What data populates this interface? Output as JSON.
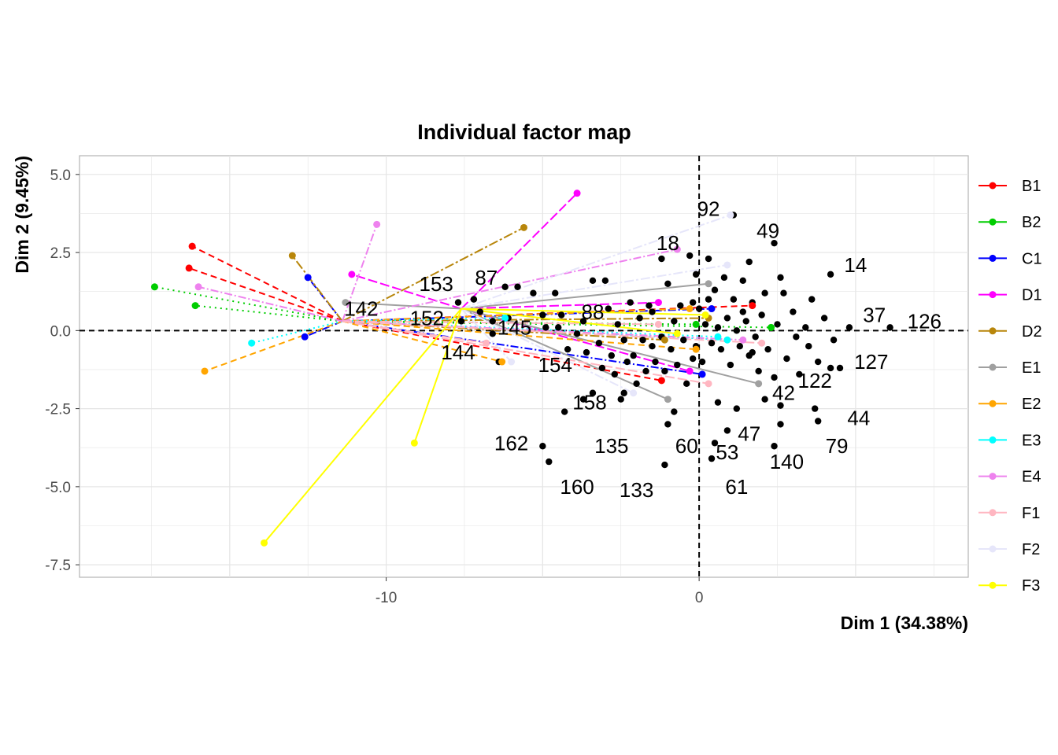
{
  "chart_data": {
    "type": "scatter",
    "title": "Individual factor map",
    "xlabel": "Dim 1 (34.38%)",
    "ylabel": "Dim 2 (9.45%)",
    "xlim": [
      -19.8,
      8.6
    ],
    "ylim": [
      -7.9,
      5.6
    ],
    "x_ticks": [
      -10,
      0
    ],
    "y_ticks": [
      5.0,
      2.5,
      0.0,
      -2.5,
      -5.0,
      -7.5
    ],
    "x_tick_labels": [
      "-10",
      "0"
    ],
    "y_tick_labels": [
      "5.0",
      "2.5",
      "0.0",
      "-2.5",
      "-5.0",
      "-7.5"
    ],
    "grid": true,
    "reference_lines": {
      "x": 0,
      "y": 0,
      "style": "dashed"
    },
    "individuals": [
      [
        -7.6,
        0.3
      ],
      [
        -7.2,
        1.0
      ],
      [
        -7.0,
        0.6
      ],
      [
        -6.6,
        0.3
      ],
      [
        -6.2,
        1.4
      ],
      [
        -6.1,
        0.4
      ],
      [
        -5.8,
        1.4
      ],
      [
        -5.3,
        1.2
      ],
      [
        -5.0,
        0.5
      ],
      [
        -4.6,
        1.2
      ],
      [
        -4.5,
        0.1
      ],
      [
        -4.2,
        -0.6
      ],
      [
        -3.9,
        -0.1
      ],
      [
        -3.7,
        0.3
      ],
      [
        -3.6,
        -0.7
      ],
      [
        -3.4,
        1.6
      ],
      [
        -3.2,
        -0.4
      ],
      [
        -3.1,
        -1.2
      ],
      [
        -3.0,
        1.6
      ],
      [
        -2.9,
        0.7
      ],
      [
        -2.8,
        -0.8
      ],
      [
        -2.7,
        -1.4
      ],
      [
        -2.6,
        0.2
      ],
      [
        -2.5,
        -2.2
      ],
      [
        -2.4,
        -0.3
      ],
      [
        -2.3,
        -1.0
      ],
      [
        -2.2,
        0.9
      ],
      [
        -2.1,
        -0.8
      ],
      [
        -2.0,
        -1.7
      ],
      [
        -1.9,
        0.4
      ],
      [
        -1.8,
        -0.3
      ],
      [
        -1.7,
        -1.3
      ],
      [
        -1.6,
        0.8
      ],
      [
        -1.5,
        -0.5
      ],
      [
        -1.4,
        -1.0
      ],
      [
        -1.3,
        0.2
      ],
      [
        -1.2,
        -0.2
      ],
      [
        -1.1,
        -1.3
      ],
      [
        -1.0,
        1.5
      ],
      [
        -0.9,
        -0.6
      ],
      [
        -0.8,
        0.3
      ],
      [
        -0.7,
        -1.1
      ],
      [
        -0.6,
        0.8
      ],
      [
        -0.5,
        -0.3
      ],
      [
        -0.4,
        -1.7
      ],
      [
        -0.3,
        2.4
      ],
      [
        -0.2,
        -0.9
      ],
      [
        -0.1,
        1.8
      ],
      [
        0.0,
        0.7
      ],
      [
        0.1,
        -1.0
      ],
      [
        0.2,
        0.2
      ],
      [
        0.3,
        2.3
      ],
      [
        0.4,
        -0.4
      ],
      [
        0.5,
        1.3
      ],
      [
        0.6,
        0.1
      ],
      [
        0.7,
        -0.6
      ],
      [
        0.8,
        1.7
      ],
      [
        0.9,
        0.4
      ],
      [
        1.0,
        -1.1
      ],
      [
        1.1,
        1.0
      ],
      [
        1.2,
        0.0
      ],
      [
        1.3,
        -0.5
      ],
      [
        1.4,
        1.6
      ],
      [
        1.5,
        0.3
      ],
      [
        1.6,
        -0.8
      ],
      [
        1.7,
        0.9
      ],
      [
        1.8,
        -0.2
      ],
      [
        1.9,
        -1.3
      ],
      [
        2.0,
        0.5
      ],
      [
        2.1,
        1.2
      ],
      [
        2.2,
        -0.6
      ],
      [
        2.4,
        -1.5
      ],
      [
        2.5,
        0.2
      ],
      [
        2.6,
        1.7
      ],
      [
        2.8,
        -0.9
      ],
      [
        3.0,
        0.6
      ],
      [
        3.2,
        -1.4
      ],
      [
        3.4,
        0.1
      ],
      [
        3.5,
        -0.5
      ],
      [
        3.6,
        1.0
      ],
      [
        3.8,
        -1.0
      ],
      [
        4.0,
        0.4
      ],
      [
        4.3,
        -0.3
      ],
      [
        4.5,
        -1.2
      ],
      [
        1.6,
        2.2
      ],
      [
        2.7,
        1.2
      ],
      [
        3.1,
        -0.2
      ],
      [
        -1.0,
        -3.0
      ],
      [
        -2.4,
        -2.0
      ],
      [
        0.6,
        -2.3
      ],
      [
        1.2,
        -2.5
      ],
      [
        2.1,
        -2.2
      ],
      [
        2.6,
        -2.4
      ],
      [
        -3.4,
        -2.0
      ],
      [
        -3.7,
        -2.2
      ],
      [
        -4.3,
        -2.6
      ],
      [
        -0.8,
        -2.6
      ],
      [
        0.9,
        -3.2
      ],
      [
        0.5,
        -3.6
      ],
      [
        -5.0,
        -3.7
      ],
      [
        -4.8,
        -4.2
      ],
      [
        -1.1,
        -4.3
      ],
      [
        0.4,
        -4.1
      ],
      [
        2.6,
        -3.0
      ],
      [
        2.4,
        -3.7
      ],
      [
        3.8,
        -2.9
      ],
      [
        3.7,
        -2.5
      ],
      [
        4.2,
        -1.2
      ],
      [
        4.8,
        0.1
      ],
      [
        6.1,
        0.1
      ],
      [
        4.2,
        1.8
      ],
      [
        2.4,
        2.8
      ],
      [
        1.1,
        3.7
      ],
      [
        -1.2,
        2.3
      ],
      [
        -4.4,
        0.5
      ],
      [
        -4.9,
        0.1
      ],
      [
        -7.7,
        0.9
      ],
      [
        -6.4,
        -1.0
      ],
      [
        -6.6,
        -0.1
      ],
      [
        1.7,
        -0.7
      ],
      [
        -0.2,
        0.9
      ],
      [
        0.3,
        1.0
      ],
      [
        -1.5,
        0.6
      ],
      [
        -0.1,
        -0.5
      ],
      [
        1.4,
        0.6
      ]
    ],
    "point_labels": [
      {
        "text": "92",
        "x": 0.3,
        "y": 3.9
      },
      {
        "text": "49",
        "x": 2.2,
        "y": 3.2
      },
      {
        "text": "18",
        "x": -1.0,
        "y": 2.8
      },
      {
        "text": "14",
        "x": 5.0,
        "y": 2.1
      },
      {
        "text": "153",
        "x": -8.4,
        "y": 1.5
      },
      {
        "text": "87",
        "x": -6.8,
        "y": 1.7
      },
      {
        "text": "142",
        "x": -10.8,
        "y": 0.7
      },
      {
        "text": "152",
        "x": -8.7,
        "y": 0.4
      },
      {
        "text": "88",
        "x": -3.4,
        "y": 0.6
      },
      {
        "text": "145",
        "x": -5.9,
        "y": 0.1
      },
      {
        "text": "37",
        "x": 5.6,
        "y": 0.5
      },
      {
        "text": "126",
        "x": 7.2,
        "y": 0.3
      },
      {
        "text": "144",
        "x": -7.7,
        "y": -0.7
      },
      {
        "text": "154",
        "x": -4.6,
        "y": -1.1
      },
      {
        "text": "127",
        "x": 5.5,
        "y": -1.0
      },
      {
        "text": "122",
        "x": 3.7,
        "y": -1.6
      },
      {
        "text": "42",
        "x": 2.7,
        "y": -2.0
      },
      {
        "text": "158",
        "x": -3.5,
        "y": -2.3
      },
      {
        "text": "44",
        "x": 5.1,
        "y": -2.8
      },
      {
        "text": "47",
        "x": 1.6,
        "y": -3.3
      },
      {
        "text": "162",
        "x": -6.0,
        "y": -3.6
      },
      {
        "text": "135",
        "x": -2.8,
        "y": -3.7
      },
      {
        "text": "60",
        "x": -0.4,
        "y": -3.7
      },
      {
        "text": "53",
        "x": 0.9,
        "y": -3.9
      },
      {
        "text": "79",
        "x": 4.4,
        "y": -3.7
      },
      {
        "text": "140",
        "x": 2.8,
        "y": -4.2
      },
      {
        "text": "160",
        "x": -3.9,
        "y": -5.0
      },
      {
        "text": "133",
        "x": -2.0,
        "y": -5.1
      },
      {
        "text": "61",
        "x": 1.2,
        "y": -5.0
      }
    ],
    "series": [
      {
        "name": "B1",
        "color": "#ff0000",
        "dash": "8,5",
        "centroid": [
          -11.4,
          0.3
        ],
        "points": [
          [
            -16.2,
            2.7
          ],
          [
            -16.3,
            2.0
          ],
          [
            -1.2,
            -1.6
          ],
          [
            1.7,
            0.8
          ]
        ]
      },
      {
        "name": "B2",
        "color": "#00cd00",
        "dash": "2,5",
        "centroid": [
          -11.4,
          0.3
        ],
        "points": [
          [
            -17.4,
            1.4
          ],
          [
            -16.1,
            0.8
          ],
          [
            -0.1,
            0.2
          ],
          [
            2.3,
            0.1
          ]
        ]
      },
      {
        "name": "C1",
        "color": "#0000ff",
        "dash": "10,3,2,3",
        "centroid": [
          -11.4,
          0.3
        ],
        "points": [
          [
            -12.5,
            1.7
          ],
          [
            -12.6,
            -0.2
          ],
          [
            0.1,
            -1.4
          ],
          [
            0.4,
            0.7
          ]
        ]
      },
      {
        "name": "D1",
        "color": "#ff00ff",
        "dash": "12,4",
        "centroid": [
          -7.6,
          0.7
        ],
        "points": [
          [
            -11.1,
            1.8
          ],
          [
            -3.9,
            4.4
          ],
          [
            -1.3,
            0.9
          ],
          [
            -0.3,
            -1.3
          ]
        ]
      },
      {
        "name": "D2",
        "color": "#b8860b",
        "dash": "12,3,3,3",
        "centroid": [
          -11.4,
          0.3
        ],
        "points": [
          [
            -13.0,
            2.4
          ],
          [
            -5.6,
            3.3
          ],
          [
            -1.1,
            -0.3
          ],
          [
            0.3,
            0.4
          ]
        ]
      },
      {
        "name": "E1",
        "color": "#a0a0a0",
        "dash": "",
        "centroid": [
          -7.6,
          0.7
        ],
        "points": [
          [
            -11.3,
            0.9
          ],
          [
            -1.0,
            -2.2
          ],
          [
            1.9,
            -1.7
          ],
          [
            0.3,
            1.5
          ]
        ]
      },
      {
        "name": "E2",
        "color": "#ffa500",
        "dash": "8,5",
        "centroid": [
          -11.4,
          0.3
        ],
        "points": [
          [
            -15.8,
            -1.3
          ],
          [
            -6.3,
            -1.0
          ],
          [
            -0.1,
            -0.6
          ],
          [
            -0.3,
            0.7
          ]
        ]
      },
      {
        "name": "E3",
        "color": "#00ffff",
        "dash": "2,4",
        "centroid": [
          -11.4,
          0.3
        ],
        "points": [
          [
            -14.3,
            -0.4
          ],
          [
            -6.2,
            0.4
          ],
          [
            0.6,
            -0.2
          ],
          [
            0.9,
            -0.3
          ]
        ]
      },
      {
        "name": "E4",
        "color": "#ee82ee",
        "dash": "10,3,2,3",
        "centroid": [
          -11.4,
          0.3
        ],
        "points": [
          [
            -16.0,
            1.4
          ],
          [
            -10.3,
            3.4
          ],
          [
            -0.7,
            2.6
          ],
          [
            1.4,
            -0.3
          ]
        ]
      },
      {
        "name": "F1",
        "color": "#ffb6c1",
        "dash": "12,4",
        "centroid": [
          -11.4,
          0.3
        ],
        "points": [
          [
            -6.8,
            -0.4
          ],
          [
            -1.3,
            0.2
          ],
          [
            0.3,
            -1.7
          ],
          [
            2.0,
            -0.4
          ]
        ]
      },
      {
        "name": "F2",
        "color": "#e6e6fa",
        "dash": "12,3,3,3",
        "centroid": [
          -7.6,
          0.7
        ],
        "points": [
          [
            -2.1,
            -2.0
          ],
          [
            1.0,
            3.7
          ],
          [
            0.9,
            2.1
          ],
          [
            -6.0,
            -1.0
          ]
        ]
      },
      {
        "name": "F3",
        "color": "#ffff00",
        "dash": "",
        "centroid": [
          -7.6,
          0.7
        ],
        "points": [
          [
            -13.9,
            -6.8
          ],
          [
            -9.1,
            -3.6
          ],
          [
            -0.7,
            -0.1
          ],
          [
            0.2,
            0.5
          ]
        ]
      }
    ],
    "legend": {
      "position": "right",
      "entries": [
        "B1",
        "B2",
        "C1",
        "D1",
        "D2",
        "E1",
        "E2",
        "E3",
        "E4",
        "F1",
        "F2",
        "F3"
      ]
    }
  }
}
